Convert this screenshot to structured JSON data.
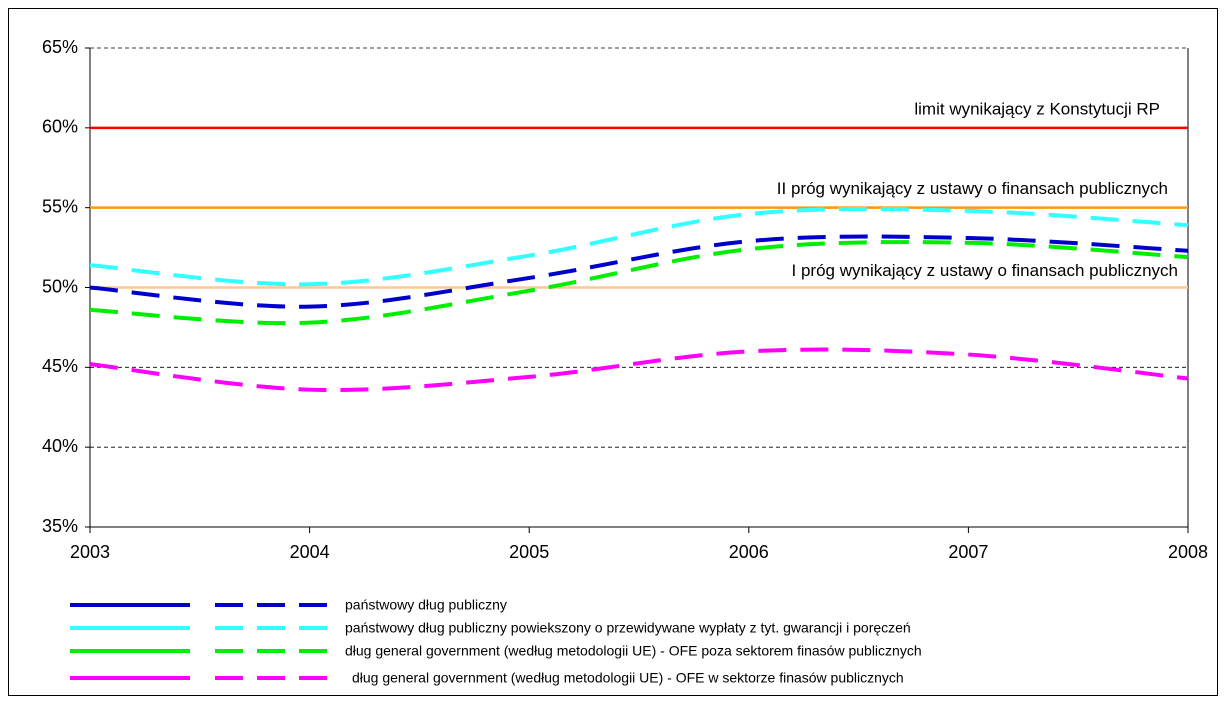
{
  "chart_data": {
    "type": "line",
    "x": [
      2003,
      2004,
      2005,
      2006,
      2007,
      2008
    ],
    "xlim": [
      2003,
      2008
    ],
    "xticks": [
      2003,
      2004,
      2005,
      2006,
      2007,
      2008
    ],
    "ylim": [
      35,
      65
    ],
    "yticks": [
      {
        "value": 35,
        "label": "35%"
      },
      {
        "value": 40,
        "label": "40%"
      },
      {
        "value": 45,
        "label": "45%"
      },
      {
        "value": 50,
        "label": "50%"
      },
      {
        "value": 55,
        "label": "55%"
      },
      {
        "value": 60,
        "label": "60%"
      },
      {
        "value": 65,
        "label": "65%"
      }
    ],
    "grid": true,
    "reference_lines": [
      {
        "label": "limit wynikający z Konstytucji RP",
        "value": 60,
        "color": "#ff0000"
      },
      {
        "label": "II próg wynikający z ustawy o finansach publicznych",
        "value": 55,
        "color": "#ff9900"
      },
      {
        "label": "I próg wynikający z ustawy o finansach publicznych",
        "value": 50,
        "color": "#fcc894"
      }
    ],
    "series": [
      {
        "name": "państwowy dług publiczny",
        "color": "#0000cc",
        "values": [
          50.0,
          48.8,
          50.6,
          52.9,
          53.1,
          52.3
        ]
      },
      {
        "name": "państwowy dług publiczny powiekszony o przewidywane wypłaty z tyt. gwarancji i poręczeń",
        "color": "#33ffff",
        "values": [
          51.4,
          50.2,
          52.0,
          54.6,
          54.8,
          53.9
        ]
      },
      {
        "name": "dług general government (według metodologii UE) - OFE poza sektorem finasów publicznych",
        "color": "#00ee00",
        "values": [
          48.6,
          47.8,
          49.8,
          52.4,
          52.8,
          51.9
        ]
      },
      {
        "name": "dług general government (według metodologii UE) - OFE w sektorze finasów publicznych",
        "color": "#ff00ff",
        "values": [
          45.2,
          43.6,
          44.4,
          46.0,
          45.8,
          44.3
        ]
      }
    ]
  }
}
